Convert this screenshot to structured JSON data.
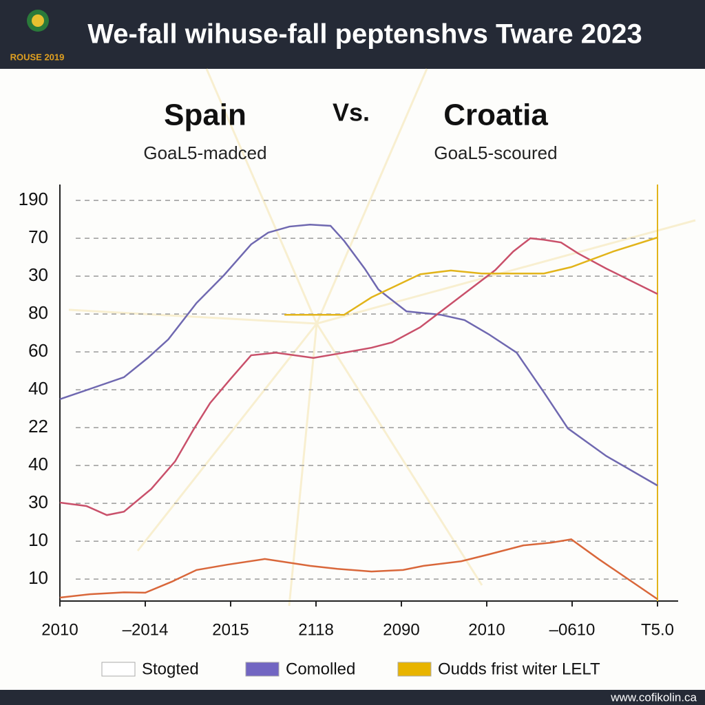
{
  "header": {
    "logo_text": "ROUSE 2019",
    "title": "We-fall wihuse-fall peptenshvs Tware 2023"
  },
  "chart_data": {
    "type": "line",
    "left_team": "Spain",
    "versus": "Vs.",
    "right_team": "Croatia",
    "left_subtitle": "GoaL5-madced",
    "right_subtitle": "GoaL5-scoured",
    "xlim": [
      0,
      7
    ],
    "xticks": [
      {
        "value": 0,
        "label": "2010"
      },
      {
        "value": 1,
        "label": "–2014"
      },
      {
        "value": 2,
        "label": "2015"
      },
      {
        "value": 3,
        "label": "2118"
      },
      {
        "value": 4,
        "label": "2090"
      },
      {
        "value": 5,
        "label": "2010"
      },
      {
        "value": 6,
        "label": "–0610"
      },
      {
        "value": 7,
        "label": "Τ5.0"
      }
    ],
    "ylim": [
      0.42,
      11.42
    ],
    "yticks": [
      {
        "value": 1,
        "label": "10"
      },
      {
        "value": 2,
        "label": "10"
      },
      {
        "value": 3,
        "label": "30"
      },
      {
        "value": 4,
        "label": "40"
      },
      {
        "value": 5,
        "label": "22"
      },
      {
        "value": 6,
        "label": "40"
      },
      {
        "value": 7,
        "label": "60"
      },
      {
        "value": 8,
        "label": "80"
      },
      {
        "value": 9,
        "label": "30"
      },
      {
        "value": 10,
        "label": "70"
      },
      {
        "value": 11,
        "label": "190"
      }
    ],
    "grid": true,
    "series": [
      {
        "color": "#6f68b0",
        "x": [
          0,
          0.35,
          0.75,
          1.03,
          1.27,
          1.6,
          1.92,
          2.24,
          2.44,
          2.69,
          2.93,
          3.17,
          3.33,
          3.57,
          3.73,
          3.9,
          4.06,
          4.46,
          4.74,
          5.02,
          5.35,
          5.67,
          5.95,
          6.4,
          7
        ],
        "values": [
          5.75,
          6.02,
          6.33,
          6.84,
          7.33,
          8.29,
          9.02,
          9.84,
          10.15,
          10.31,
          10.36,
          10.33,
          9.93,
          9.2,
          8.65,
          8.35,
          8.07,
          7.98,
          7.84,
          7.47,
          6.98,
          5.93,
          4.98,
          4.25,
          3.47
        ]
      },
      {
        "color": "#c9506a",
        "x": [
          0,
          0.31,
          0.55,
          0.75,
          1.07,
          1.35,
          1.56,
          1.76,
          2,
          2.24,
          2.53,
          2.97,
          3.33,
          3.65,
          3.89,
          4.22,
          4.54,
          4.86,
          5.1,
          5.31,
          5.51,
          5.67,
          5.87,
          6.07,
          6.4,
          7
        ],
        "values": [
          3.02,
          2.93,
          2.69,
          2.78,
          3.38,
          4.11,
          4.93,
          5.65,
          6.29,
          6.91,
          6.98,
          6.84,
          6.98,
          7.11,
          7.25,
          7.65,
          8.2,
          8.75,
          9.16,
          9.65,
          10,
          9.96,
          9.89,
          9.6,
          9.2,
          8.53
        ]
      },
      {
        "color": "#d9673a",
        "x": [
          0,
          0.35,
          0.75,
          1,
          1.31,
          1.6,
          1.96,
          2.4,
          2.93,
          3.25,
          3.65,
          4.02,
          4.26,
          4.7,
          5.02,
          5.43,
          5.75,
          5.99,
          6.31,
          7
        ],
        "values": [
          0.51,
          0.6,
          0.65,
          0.64,
          0.93,
          1.24,
          1.38,
          1.53,
          1.35,
          1.27,
          1.2,
          1.24,
          1.35,
          1.47,
          1.65,
          1.89,
          1.96,
          2.05,
          1.53,
          0.47
        ]
      },
      {
        "color": "#e2b41a",
        "x": [
          2.63,
          3.33,
          3.65,
          3.94,
          4.22,
          4.58,
          4.94,
          5.67,
          5.99,
          6.48,
          7
        ],
        "values": [
          7.98,
          7.98,
          8.44,
          8.75,
          9.05,
          9.15,
          9.07,
          9.07,
          9.24,
          9.65,
          10.02
        ]
      }
    ],
    "legend": [
      {
        "name": "Stogted",
        "color": "#ffffff"
      },
      {
        "name": "Comolled",
        "color": "#7266c2"
      },
      {
        "name": "Oudds frist witer LELT",
        "color": "#e8b400"
      }
    ]
  },
  "footer": {
    "url": "www.cofikolin.ca"
  }
}
